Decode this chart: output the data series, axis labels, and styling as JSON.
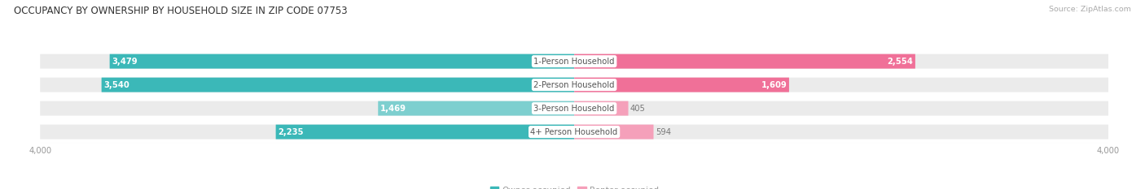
{
  "title": "OCCUPANCY BY OWNERSHIP BY HOUSEHOLD SIZE IN ZIP CODE 07753",
  "source": "Source: ZipAtlas.com",
  "categories": [
    "1-Person Household",
    "2-Person Household",
    "3-Person Household",
    "4+ Person Household"
  ],
  "owner_values": [
    3479,
    3540,
    1469,
    2235
  ],
  "renter_values": [
    2554,
    1609,
    405,
    594
  ],
  "max_val": 4000,
  "owner_color_dark": "#3BB8B8",
  "owner_color_light": "#7DCFCF",
  "renter_color_dark": "#F07098",
  "renter_color_light": "#F5A0BA",
  "bar_bg_color": "#EBEBEB",
  "background_color": "#FFFFFF",
  "title_fontsize": 8.5,
  "label_fontsize": 7.2,
  "tick_fontsize": 7.2,
  "legend_fontsize": 7.5,
  "source_fontsize": 6.8,
  "axis_label_color": "#999999",
  "category_label_color": "#555555",
  "value_in_color": "#FFFFFF",
  "value_out_color": "#777777"
}
